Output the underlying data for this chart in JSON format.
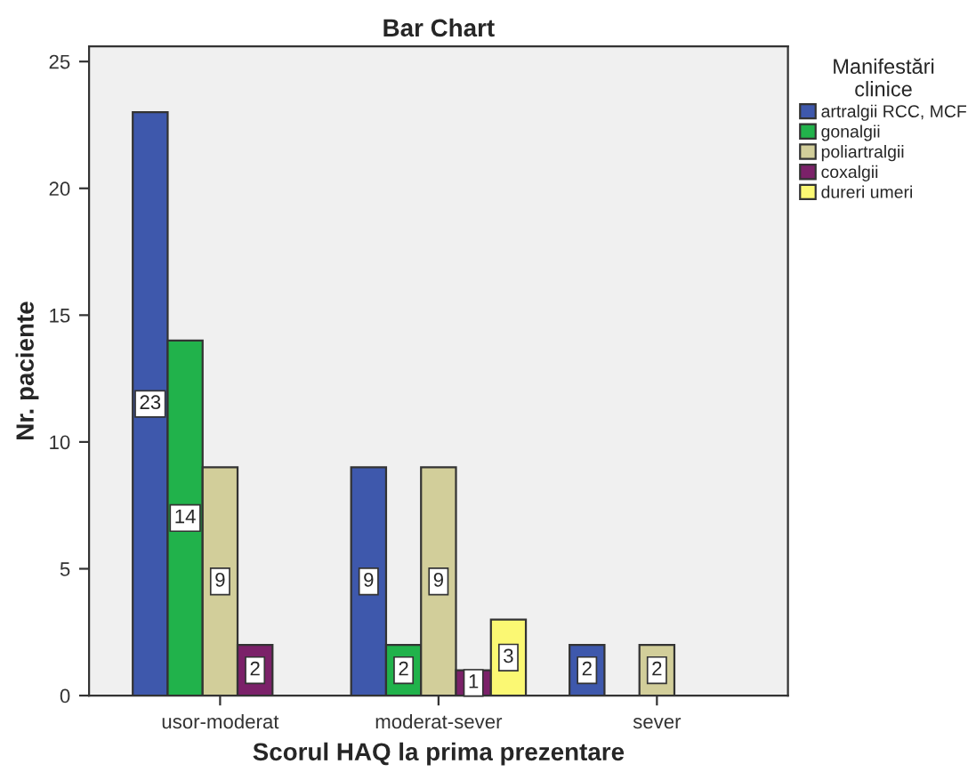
{
  "chart_data": {
    "type": "bar",
    "title": "Bar Chart",
    "xlabel": "Scorul HAQ la prima prezentare",
    "ylabel": "Nr. paciente",
    "legend_title": "Manifestări\nclinice",
    "categories": [
      "usor-moderat",
      "moderat-sever",
      "sever"
    ],
    "series": [
      {
        "name": "artralgii RCC, MCF",
        "color": "#3e58ac",
        "values": [
          23,
          9,
          2
        ]
      },
      {
        "name": "gonalgii",
        "color": "#21b24b",
        "values": [
          14,
          2,
          null
        ]
      },
      {
        "name": "poliartralgii",
        "color": "#d2ce9a",
        "values": [
          9,
          9,
          2
        ]
      },
      {
        "name": "coxalgii",
        "color": "#7b2169",
        "values": [
          2,
          1,
          null
        ]
      },
      {
        "name": "dureri umeri",
        "color": "#fbf873",
        "values": [
          null,
          3,
          null
        ]
      }
    ],
    "ylim": [
      0,
      25.6
    ],
    "yticks": [
      0,
      5,
      10,
      15,
      20,
      25
    ],
    "grid": false,
    "legend": "top right",
    "data_labels": true
  }
}
